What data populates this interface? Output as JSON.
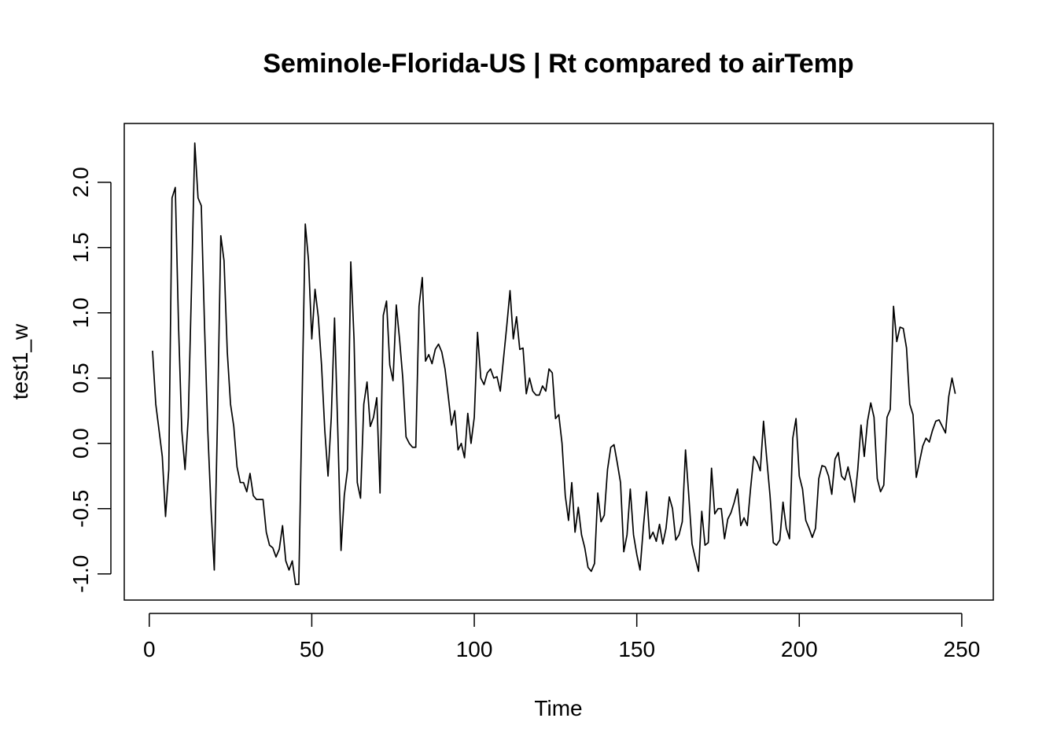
{
  "chart_data": {
    "type": "line",
    "title": "Seminole-Florida-US | Rt compared to airTemp",
    "xlabel": "Time",
    "ylabel": "test1_w",
    "xlim": [
      -7.7,
      259.7
    ],
    "ylim": [
      -1.2,
      2.45
    ],
    "x_ticks": [
      0,
      50,
      100,
      150,
      200,
      250
    ],
    "x_tick_labels": [
      "0",
      "50",
      "100",
      "150",
      "200",
      "250"
    ],
    "y_ticks": [
      -1.0,
      -0.5,
      0.0,
      0.5,
      1.0,
      1.5,
      2.0
    ],
    "y_tick_labels": [
      "-1.0",
      "-0.5",
      "0.0",
      "0.5",
      "1.0",
      "1.5",
      "2.0"
    ],
    "grid": false,
    "legend": "none",
    "line_color": "#000000",
    "series": [
      {
        "x_start": 1,
        "values": [
          0.71,
          0.3,
          0.1,
          -0.1,
          -0.56,
          -0.2,
          1.88,
          1.96,
          0.9,
          0.1,
          -0.2,
          0.2,
          1.2,
          2.3,
          1.88,
          1.82,
          0.9,
          0.1,
          -0.5,
          -0.97,
          0.2,
          1.59,
          1.4,
          0.7,
          0.3,
          0.13,
          -0.18,
          -0.3,
          -0.3,
          -0.37,
          -0.23,
          -0.4,
          -0.43,
          -0.43,
          -0.43,
          -0.68,
          -0.78,
          -0.8,
          -0.87,
          -0.81,
          -0.63,
          -0.9,
          -0.97,
          -0.9,
          -1.08,
          -1.08,
          0.3,
          1.68,
          1.4,
          0.8,
          1.18,
          0.97,
          0.6,
          0.1,
          -0.25,
          0.2,
          0.96,
          0.1,
          -0.82,
          -0.4,
          -0.2,
          1.39,
          0.8,
          -0.3,
          -0.42,
          0.3,
          0.47,
          0.13,
          0.2,
          0.35,
          -0.38,
          0.98,
          1.09,
          0.6,
          0.48,
          1.06,
          0.8,
          0.5,
          0.05,
          0.0,
          -0.03,
          -0.03,
          1.05,
          1.27,
          0.63,
          0.68,
          0.61,
          0.72,
          0.76,
          0.7,
          0.57,
          0.36,
          0.14,
          0.25,
          -0.05,
          0.0,
          -0.11,
          0.23,
          0.0,
          0.2,
          0.85,
          0.5,
          0.45,
          0.54,
          0.57,
          0.5,
          0.51,
          0.4,
          0.65,
          0.9,
          1.17,
          0.8,
          0.97,
          0.72,
          0.73,
          0.38,
          0.5,
          0.4,
          0.37,
          0.37,
          0.44,
          0.4,
          0.57,
          0.54,
          0.19,
          0.22,
          0.0,
          -0.4,
          -0.59,
          -0.3,
          -0.68,
          -0.49,
          -0.7,
          -0.8,
          -0.95,
          -0.98,
          -0.92,
          -0.38,
          -0.6,
          -0.55,
          -0.2,
          -0.03,
          -0.01,
          -0.15,
          -0.3,
          -0.83,
          -0.7,
          -0.35,
          -0.7,
          -0.85,
          -0.97,
          -0.65,
          -0.37,
          -0.73,
          -0.68,
          -0.75,
          -0.62,
          -0.77,
          -0.65,
          -0.41,
          -0.5,
          -0.74,
          -0.7,
          -0.6,
          -0.05,
          -0.4,
          -0.77,
          -0.88,
          -0.98,
          -0.52,
          -0.78,
          -0.76,
          -0.19,
          -0.54,
          -0.5,
          -0.5,
          -0.73,
          -0.58,
          -0.53,
          -0.45,
          -0.35,
          -0.63,
          -0.57,
          -0.63,
          -0.35,
          -0.1,
          -0.14,
          -0.21,
          0.17,
          -0.12,
          -0.4,
          -0.76,
          -0.78,
          -0.74,
          -0.45,
          -0.65,
          -0.73,
          0.04,
          0.19,
          -0.25,
          -0.35,
          -0.59,
          -0.65,
          -0.72,
          -0.65,
          -0.27,
          -0.17,
          -0.18,
          -0.25,
          -0.39,
          -0.12,
          -0.07,
          -0.25,
          -0.28,
          -0.18,
          -0.3,
          -0.45,
          -0.2,
          0.14,
          -0.1,
          0.17,
          0.31,
          0.2,
          -0.27,
          -0.37,
          -0.32,
          0.2,
          0.26,
          1.05,
          0.78,
          0.89,
          0.88,
          0.73,
          0.3,
          0.22,
          -0.26,
          -0.14,
          -0.02,
          0.04,
          0.01,
          0.1,
          0.17,
          0.18,
          0.13,
          0.08,
          0.36,
          0.5,
          0.38
        ]
      }
    ]
  }
}
